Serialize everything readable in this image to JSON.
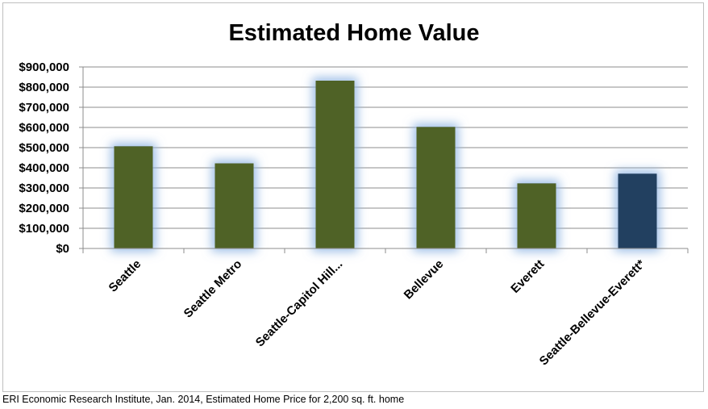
{
  "chart_data": {
    "type": "bar",
    "title": "Estimated Home Value",
    "categories": [
      "Seattle",
      "Seattle Metro",
      "Seattle-Capitol Hill...",
      "Bellevue",
      "Everett",
      "Seattle-Bellevue-Everett*"
    ],
    "values": [
      507000,
      422000,
      832000,
      603000,
      323000,
      371000
    ],
    "bar_colors": [
      "#4f6228",
      "#4f6228",
      "#4f6228",
      "#4f6228",
      "#4f6228",
      "#243f60"
    ],
    "ylim": [
      0,
      900000
    ],
    "yticks": [
      0,
      100000,
      200000,
      300000,
      400000,
      500000,
      600000,
      700000,
      800000,
      900000
    ],
    "ytick_labels": [
      "$0",
      "$100,000",
      "$200,000",
      "$300,000",
      "$400,000",
      "$500,000",
      "$600,000",
      "$700,000",
      "$800,000",
      "$900,000"
    ],
    "xlabel": "",
    "ylabel": "",
    "grid": true,
    "legend": "none"
  },
  "footnote": "ERI Economic Research Institute, Jan. 2014, Estimated Home Price for 2,200 sq. ft. home"
}
